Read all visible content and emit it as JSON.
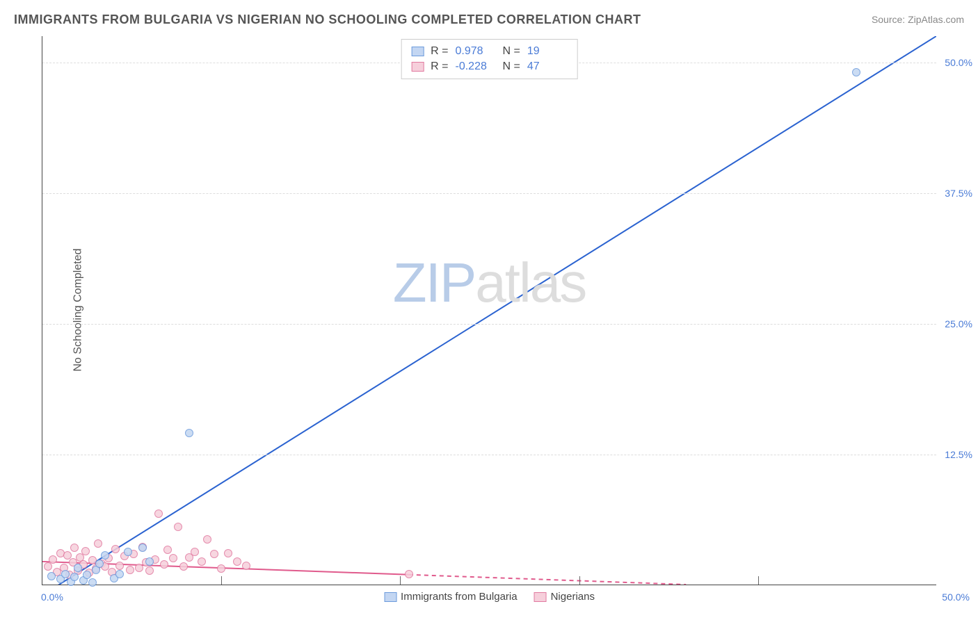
{
  "title": "IMMIGRANTS FROM BULGARIA VS NIGERIAN NO SCHOOLING COMPLETED CORRELATION CHART",
  "source_prefix": "Source: ",
  "source": "ZipAtlas.com",
  "ylabel": "No Schooling Completed",
  "watermark_a": "ZIP",
  "watermark_b": "atlas",
  "chart": {
    "type": "scatter-correlation",
    "background_color": "#ffffff",
    "grid_color": "#dddddd",
    "axis_color": "#444444",
    "tick_label_color": "#4a7bd6",
    "xlim": [
      0,
      50
    ],
    "ylim": [
      0,
      52.5
    ],
    "ytick_step": 12.5,
    "ytick_labels": [
      "12.5%",
      "25.0%",
      "37.5%",
      "50.0%"
    ],
    "x_min_label": "0.0%",
    "x_max_label": "50.0%",
    "series": [
      {
        "name": "Immigrants from Bulgaria",
        "r_value": "0.978",
        "n_value": "19",
        "marker_fill": "#c3d6f2",
        "marker_stroke": "#6c9bdc",
        "line_color": "#2a62d0",
        "line_width": 2,
        "marker_size": 12,
        "trend": {
          "x1": 0,
          "y1": -1.0,
          "x2": 50,
          "y2": 52.5,
          "dashed_from": null
        },
        "points": [
          {
            "x": 0.5,
            "y": 0.8
          },
          {
            "x": 1.0,
            "y": 0.5
          },
          {
            "x": 1.3,
            "y": 1.0
          },
          {
            "x": 1.6,
            "y": 0.3
          },
          {
            "x": 1.8,
            "y": 0.7
          },
          {
            "x": 2.0,
            "y": 1.6
          },
          {
            "x": 2.3,
            "y": 0.4
          },
          {
            "x": 2.5,
            "y": 0.9
          },
          {
            "x": 2.8,
            "y": 0.2
          },
          {
            "x": 3.0,
            "y": 1.4
          },
          {
            "x": 3.2,
            "y": 2.0
          },
          {
            "x": 3.5,
            "y": 2.8
          },
          {
            "x": 4.0,
            "y": 0.6
          },
          {
            "x": 4.3,
            "y": 1.0
          },
          {
            "x": 4.8,
            "y": 3.1
          },
          {
            "x": 5.6,
            "y": 3.5
          },
          {
            "x": 6.0,
            "y": 2.2
          },
          {
            "x": 8.2,
            "y": 14.5
          },
          {
            "x": 45.5,
            "y": 49.0
          }
        ]
      },
      {
        "name": "Nigerians",
        "r_value": "-0.228",
        "n_value": "47",
        "marker_fill": "#f6cfdb",
        "marker_stroke": "#e17aa0",
        "line_color": "#e05a8c",
        "line_width": 2,
        "marker_size": 12,
        "trend": {
          "x1": 0,
          "y1": 2.2,
          "x2": 36,
          "y2": 0,
          "dashed_from": 20.5
        },
        "points": [
          {
            "x": 0.3,
            "y": 1.7
          },
          {
            "x": 0.6,
            "y": 2.4
          },
          {
            "x": 0.8,
            "y": 1.2
          },
          {
            "x": 1.0,
            "y": 3.0
          },
          {
            "x": 1.2,
            "y": 1.6
          },
          {
            "x": 1.4,
            "y": 2.8
          },
          {
            "x": 1.5,
            "y": 0.9
          },
          {
            "x": 1.7,
            "y": 2.1
          },
          {
            "x": 1.8,
            "y": 3.5
          },
          {
            "x": 2.0,
            "y": 1.3
          },
          {
            "x": 2.1,
            "y": 2.6
          },
          {
            "x": 2.3,
            "y": 1.9
          },
          {
            "x": 2.4,
            "y": 3.2
          },
          {
            "x": 2.6,
            "y": 1.1
          },
          {
            "x": 2.8,
            "y": 2.3
          },
          {
            "x": 3.0,
            "y": 1.5
          },
          {
            "x": 3.1,
            "y": 3.9
          },
          {
            "x": 3.3,
            "y": 2.0
          },
          {
            "x": 3.5,
            "y": 1.7
          },
          {
            "x": 3.7,
            "y": 2.5
          },
          {
            "x": 3.9,
            "y": 1.2
          },
          {
            "x": 4.1,
            "y": 3.4
          },
          {
            "x": 4.3,
            "y": 1.8
          },
          {
            "x": 4.6,
            "y": 2.7
          },
          {
            "x": 4.9,
            "y": 1.4
          },
          {
            "x": 5.1,
            "y": 2.9
          },
          {
            "x": 5.4,
            "y": 1.6
          },
          {
            "x": 5.6,
            "y": 3.6
          },
          {
            "x": 5.8,
            "y": 2.1
          },
          {
            "x": 6.0,
            "y": 1.3
          },
          {
            "x": 6.3,
            "y": 2.4
          },
          {
            "x": 6.5,
            "y": 6.8
          },
          {
            "x": 6.8,
            "y": 1.9
          },
          {
            "x": 7.0,
            "y": 3.3
          },
          {
            "x": 7.3,
            "y": 2.5
          },
          {
            "x": 7.6,
            "y": 5.5
          },
          {
            "x": 7.9,
            "y": 1.7
          },
          {
            "x": 8.2,
            "y": 2.6
          },
          {
            "x": 8.5,
            "y": 3.1
          },
          {
            "x": 8.9,
            "y": 2.2
          },
          {
            "x": 9.2,
            "y": 4.3
          },
          {
            "x": 9.6,
            "y": 2.9
          },
          {
            "x": 10.0,
            "y": 1.5
          },
          {
            "x": 10.4,
            "y": 3.0
          },
          {
            "x": 10.9,
            "y": 2.2
          },
          {
            "x": 11.4,
            "y": 1.8
          },
          {
            "x": 20.5,
            "y": 1.0
          }
        ]
      }
    ]
  },
  "stat_legend_labels": {
    "r": "R =",
    "n": "N ="
  }
}
